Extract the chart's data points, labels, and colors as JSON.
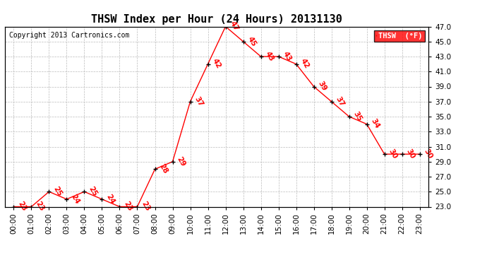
{
  "title": "THSW Index per Hour (24 Hours) 20131130",
  "copyright": "Copyright 2013 Cartronics.com",
  "legend_label": "THSW  (°F)",
  "hours": [
    0,
    1,
    2,
    3,
    4,
    5,
    6,
    7,
    8,
    9,
    10,
    11,
    12,
    13,
    14,
    15,
    16,
    17,
    18,
    19,
    20,
    21,
    22,
    23
  ],
  "hour_labels": [
    "00:00",
    "01:00",
    "02:00",
    "03:00",
    "04:00",
    "05:00",
    "06:00",
    "07:00",
    "08:00",
    "09:00",
    "10:00",
    "11:00",
    "12:00",
    "13:00",
    "14:00",
    "15:00",
    "16:00",
    "17:00",
    "18:00",
    "19:00",
    "20:00",
    "21:00",
    "22:00",
    "23:00"
  ],
  "values": [
    23,
    23,
    25,
    24,
    25,
    24,
    23,
    23,
    28,
    29,
    37,
    42,
    47,
    45,
    43,
    43,
    42,
    39,
    37,
    35,
    34,
    30,
    30,
    30
  ],
  "ylim": [
    23.0,
    47.0
  ],
  "yticks": [
    23.0,
    25.0,
    27.0,
    29.0,
    31.0,
    33.0,
    35.0,
    37.0,
    39.0,
    41.0,
    43.0,
    45.0,
    47.0
  ],
  "line_color": "red",
  "marker_color": "black",
  "label_color": "red",
  "bg_color": "white",
  "grid_color": "#bbbbbb",
  "title_fontsize": 11,
  "copyright_fontsize": 7,
  "tick_fontsize": 7.5,
  "value_fontsize": 7.5
}
